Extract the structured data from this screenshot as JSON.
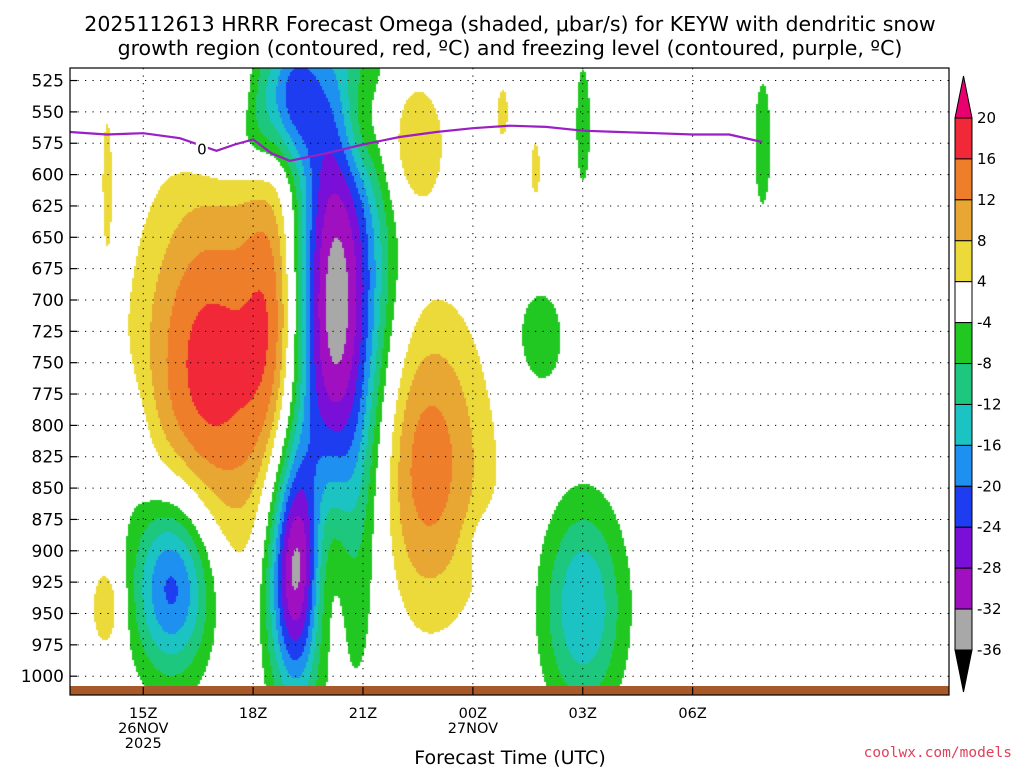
{
  "chart_data": {
    "type": "heatmap",
    "title_line1": "2025112613 HRRR Forecast Omega (shaded, μbar/s) for KEYW with dendritic snow",
    "title_line2": "growth region (contoured, red, ºC) and freezing level (contoured, purple, ºC)",
    "xlabel": "Forecast Time (UTC)",
    "ylabel": "",
    "y_ticks": [
      525,
      550,
      575,
      600,
      625,
      650,
      675,
      700,
      725,
      750,
      775,
      800,
      825,
      850,
      875,
      900,
      925,
      950,
      975,
      1000
    ],
    "y_range": [
      515,
      1015
    ],
    "x_range_hours": [
      13,
      37
    ],
    "x_ticks": [
      {
        "hour": 15,
        "lines": [
          "15Z",
          "26NOV",
          "2025"
        ]
      },
      {
        "hour": 18,
        "lines": [
          "18Z"
        ]
      },
      {
        "hour": 21,
        "lines": [
          "21Z"
        ]
      },
      {
        "hour": 24,
        "lines": [
          "00Z",
          "27NOV"
        ]
      },
      {
        "hour": 27,
        "lines": [
          "03Z"
        ]
      },
      {
        "hour": 30,
        "lines": [
          "06Z"
        ]
      }
    ],
    "colorbar": {
      "ticks": [
        "20",
        "16",
        "12",
        "8",
        "4",
        "-4",
        "-8",
        "-12",
        "-16",
        "-20",
        "-24",
        "-28",
        "-32",
        "-36"
      ],
      "colors": {
        "above_20": "#e8006e",
        "16_20": "#f02838",
        "12_16": "#ee7e2a",
        "8_12": "#e8a633",
        "4_8": "#ebda3a",
        "neutral": "#ffffff",
        "m8_m4": "#22c822",
        "m12_m8": "#1ec77e",
        "m16_m12": "#1bc3c3",
        "m20_m16": "#1e90f0",
        "m24_m20": "#1e3cf0",
        "m28_m24": "#7a10d8",
        "m32_m28": "#a010c0",
        "m36_m32": "#a8a8a8",
        "below_m36": "#000000"
      }
    },
    "freezing_level": {
      "label": "0",
      "color": "#9a1fc4",
      "hours": [
        13,
        14,
        15,
        16,
        17,
        17.5,
        18,
        18.5,
        19,
        19.5,
        20,
        21,
        22,
        23,
        24,
        25,
        26,
        27,
        28,
        29,
        30,
        31,
        31.9
      ],
      "pressure": [
        566,
        568,
        567,
        571,
        581,
        576,
        572,
        583,
        589,
        586,
        583,
        576,
        570,
        566,
        563,
        561,
        562,
        565,
        566,
        567,
        568,
        568,
        574
      ]
    },
    "omega_features": [
      {
        "center": [
          16.8,
          755
        ],
        "radius": [
          2.0,
          160
        ],
        "value": 18
      },
      {
        "center": [
          18.7,
          710
        ],
        "radius": [
          0.95,
          175
        ],
        "value": 16
      },
      {
        "center": [
          19.9,
          905
        ],
        "radius": [
          0.75,
          110
        ],
        "value": 20
      },
      {
        "center": [
          22.6,
          830
        ],
        "radius": [
          1.9,
          130
        ],
        "value": 15
      },
      {
        "center": [
          19.2,
          915
        ],
        "radius": [
          0.85,
          105
        ],
        "value": -34
      },
      {
        "center": [
          20.2,
          720
        ],
        "radius": [
          1.45,
          235
        ],
        "value": -37
      },
      {
        "center": [
          15.8,
          925
        ],
        "radius": [
          1.2,
          80
        ],
        "value": -24
      },
      {
        "center": [
          27.0,
          945
        ],
        "radius": [
          1.2,
          90
        ],
        "value": -16
      },
      {
        "center": [
          17.5,
          575
        ],
        "radius": [
          1.4,
          35
        ],
        "value": -6
      },
      {
        "center": [
          18.2,
          540
        ],
        "radius": [
          0.5,
          55
        ],
        "value": -6
      },
      {
        "center": [
          19.0,
          535
        ],
        "radius": [
          0.8,
          55
        ],
        "value": -18
      },
      {
        "center": [
          14.4,
          815
        ],
        "radius": [
          0.8,
          55
        ],
        "value": -6
      },
      {
        "center": [
          25.8,
          730
        ],
        "radius": [
          1.0,
          60
        ],
        "value": -6
      },
      {
        "center": [
          24.6,
          895
        ],
        "radius": [
          0.7,
          25
        ],
        "value": -6
      },
      {
        "center": [
          27.0,
          560
        ],
        "radius": [
          0.3,
          75
        ],
        "value": -6
      },
      {
        "center": [
          31.9,
          575
        ],
        "radius": [
          0.35,
          80
        ],
        "value": -6
      },
      {
        "center": [
          22.3,
          575
        ],
        "radius": [
          1.0,
          60
        ],
        "value": 9
      },
      {
        "center": [
          20.9,
          560
        ],
        "radius": [
          0.6,
          50
        ],
        "value": 8
      },
      {
        "center": [
          14.0,
          600
        ],
        "radius": [
          0.2,
          80
        ],
        "value": 5
      },
      {
        "center": [
          14.0,
          945
        ],
        "radius": [
          0.5,
          40
        ],
        "value": 8
      },
      {
        "center": [
          25.7,
          595
        ],
        "radius": [
          0.25,
          45
        ],
        "value": 5
      },
      {
        "center": [
          24.8,
          550
        ],
        "radius": [
          0.3,
          40
        ],
        "value": 5
      }
    ],
    "credit": "coolwx.com/models"
  }
}
